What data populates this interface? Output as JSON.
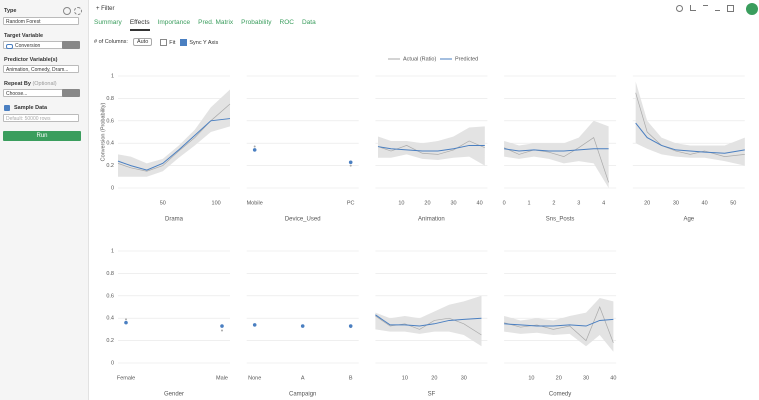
{
  "sidebar": {
    "type_label": "Type",
    "type_value": "Random Forest",
    "target_label": "Target Variable",
    "target_value": "Conversion",
    "predictor_label": "Predictor Variable(s)",
    "predictor_value": "Animation, Comedy, Dram...",
    "repeat_label": "Repeat By",
    "repeat_optional": "(Optional)",
    "repeat_value": "Choose...",
    "sample_label": "Sample Data",
    "sample_placeholder": "Default: 50000 rows",
    "run": "Run"
  },
  "toolbar": {
    "filter": "Filter"
  },
  "tabs": [
    "Summary",
    "Effects",
    "Importance",
    "Pred. Matrix",
    "Probability",
    "ROC",
    "Data"
  ],
  "active_tab": 1,
  "options": {
    "columns_label": "# of Columns:",
    "columns_value": "Auto",
    "fit": "Fit",
    "sync": "Sync Y Axis"
  },
  "chart_data": [
    {
      "type": "line",
      "x_label": "Drama",
      "y_label": "Conversion (Probability)",
      "ylim": [
        0,
        1
      ],
      "yticks": [
        0,
        0.2,
        0.4,
        0.6,
        0.8,
        1
      ],
      "xlim": [
        8,
        113
      ],
      "xticks": [
        50,
        100
      ],
      "x": [
        8,
        20,
        35,
        50,
        65,
        80,
        95,
        113
      ],
      "series": [
        {
          "name": "Actual (Ratio)",
          "color": "#aaaaaa",
          "values": [
            0.22,
            0.18,
            0.15,
            0.2,
            0.33,
            0.45,
            0.6,
            0.75
          ]
        },
        {
          "name": "Predicted",
          "color": "#4a7fc1",
          "values": [
            0.24,
            0.2,
            0.16,
            0.22,
            0.34,
            0.47,
            0.6,
            0.62
          ]
        }
      ],
      "band": {
        "low": [
          0.1,
          0.1,
          0.1,
          0.15,
          0.27,
          0.38,
          0.5,
          0.55
        ],
        "high": [
          0.3,
          0.28,
          0.22,
          0.26,
          0.38,
          0.52,
          0.72,
          0.88
        ]
      }
    },
    {
      "type": "dots",
      "x_label": "Device_Used",
      "categories": [
        "Mobile",
        "PC"
      ],
      "series": [
        {
          "color": "#aaaaaa",
          "values": [
            0.37,
            0.2
          ]
        },
        {
          "color": "#4a7fc1",
          "values": [
            0.34,
            0.23
          ]
        }
      ]
    },
    {
      "type": "line",
      "x_label": "Animation",
      "xlim": [
        0,
        43
      ],
      "xticks": [
        10,
        20,
        30,
        40
      ],
      "x": [
        1,
        6,
        12,
        18,
        24,
        30,
        36,
        42
      ],
      "series": [
        {
          "color": "#aaaaaa",
          "values": [
            0.37,
            0.33,
            0.38,
            0.31,
            0.3,
            0.34,
            0.42,
            0.36
          ]
        },
        {
          "color": "#4a7fc1",
          "values": [
            0.37,
            0.35,
            0.34,
            0.33,
            0.33,
            0.35,
            0.38,
            0.38
          ]
        }
      ],
      "band": {
        "low": [
          0.27,
          0.27,
          0.3,
          0.26,
          0.25,
          0.27,
          0.28,
          0.2
        ],
        "high": [
          0.46,
          0.42,
          0.42,
          0.4,
          0.42,
          0.46,
          0.54,
          0.55
        ]
      }
    },
    {
      "type": "line",
      "x_label": "Sns_Posts",
      "xlim": [
        0,
        4.5
      ],
      "xticks": [
        0,
        1,
        2,
        3,
        4
      ],
      "x": [
        0,
        0.6,
        1.2,
        1.8,
        2.4,
        3,
        3.6,
        4.2
      ],
      "series": [
        {
          "color": "#aaaaaa",
          "values": [
            0.36,
            0.3,
            0.34,
            0.32,
            0.28,
            0.36,
            0.45,
            0.05
          ]
        },
        {
          "color": "#4a7fc1",
          "values": [
            0.35,
            0.33,
            0.34,
            0.33,
            0.33,
            0.34,
            0.35,
            0.35
          ]
        }
      ],
      "band": {
        "low": [
          0.28,
          0.26,
          0.28,
          0.26,
          0.22,
          0.24,
          0.22,
          0
        ],
        "high": [
          0.42,
          0.38,
          0.4,
          0.4,
          0.4,
          0.45,
          0.6,
          0.55
        ]
      }
    },
    {
      "type": "line",
      "x_label": "Age",
      "xlim": [
        15,
        54
      ],
      "xticks": [
        20,
        30,
        40,
        50
      ],
      "x": [
        16,
        20,
        25,
        30,
        35,
        40,
        47,
        54
      ],
      "series": [
        {
          "color": "#aaaaaa",
          "values": [
            0.85,
            0.5,
            0.38,
            0.33,
            0.3,
            0.33,
            0.28,
            0.3
          ]
        },
        {
          "color": "#4a7fc1",
          "values": [
            0.58,
            0.45,
            0.38,
            0.34,
            0.33,
            0.32,
            0.31,
            0.34
          ]
        }
      ],
      "band": {
        "low": [
          0.4,
          0.35,
          0.3,
          0.28,
          0.27,
          0.27,
          0.24,
          0.2
        ],
        "high": [
          0.95,
          0.6,
          0.45,
          0.4,
          0.38,
          0.38,
          0.38,
          0.45
        ]
      }
    },
    {
      "type": "dots",
      "x_label": "Gender",
      "ylim": [
        0,
        1
      ],
      "yticks": [
        0,
        0.2,
        0.4,
        0.6,
        0.8,
        1
      ],
      "categories": [
        "Female",
        "Male"
      ],
      "series": [
        {
          "color": "#aaaaaa",
          "values": [
            0.39,
            0.29
          ]
        },
        {
          "color": "#4a7fc1",
          "values": [
            0.36,
            0.33
          ]
        }
      ]
    },
    {
      "type": "dots",
      "x_label": "Campaign",
      "categories": [
        "None",
        "A",
        "B"
      ],
      "series": [
        {
          "color": "#aaaaaa",
          "values": [
            0.34,
            0.33,
            0.32
          ]
        },
        {
          "color": "#4a7fc1",
          "values": [
            0.34,
            0.33,
            0.33
          ]
        }
      ]
    },
    {
      "type": "line",
      "x_label": "SF",
      "xlim": [
        0,
        38
      ],
      "xticks": [
        10,
        20,
        30
      ],
      "x": [
        0,
        5,
        10,
        15,
        20,
        25,
        30,
        36
      ],
      "series": [
        {
          "color": "#aaaaaa",
          "values": [
            0.42,
            0.33,
            0.35,
            0.3,
            0.38,
            0.4,
            0.35,
            0.25
          ]
        },
        {
          "color": "#4a7fc1",
          "values": [
            0.43,
            0.34,
            0.34,
            0.33,
            0.35,
            0.38,
            0.39,
            0.4
          ]
        }
      ],
      "band": {
        "low": [
          0.3,
          0.28,
          0.28,
          0.26,
          0.28,
          0.28,
          0.25,
          0.15
        ],
        "high": [
          0.45,
          0.4,
          0.42,
          0.4,
          0.46,
          0.52,
          0.55,
          0.6
        ]
      }
    },
    {
      "type": "line",
      "x_label": "Comedy",
      "xlim": [
        0,
        41
      ],
      "xticks": [
        10,
        20,
        30,
        40
      ],
      "x": [
        0,
        6,
        12,
        18,
        24,
        30,
        35,
        40
      ],
      "series": [
        {
          "color": "#aaaaaa",
          "values": [
            0.36,
            0.32,
            0.34,
            0.3,
            0.33,
            0.2,
            0.5,
            0.18
          ]
        },
        {
          "color": "#4a7fc1",
          "values": [
            0.35,
            0.34,
            0.33,
            0.33,
            0.34,
            0.33,
            0.38,
            0.39
          ]
        }
      ],
      "band": {
        "low": [
          0.28,
          0.26,
          0.27,
          0.25,
          0.26,
          0.15,
          0.25,
          0.1
        ],
        "high": [
          0.42,
          0.38,
          0.4,
          0.38,
          0.42,
          0.45,
          0.58,
          0.55
        ]
      }
    }
  ]
}
